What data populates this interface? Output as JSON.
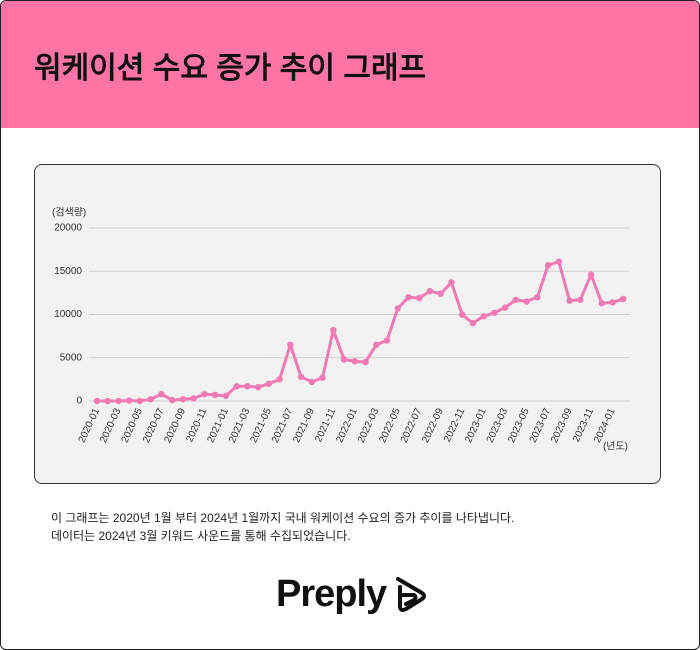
{
  "header": {
    "title": "워케이션 수요 증가 추이 그래프"
  },
  "chart_data": {
    "type": "line",
    "y_label": "(검색량)",
    "x_label": "(년도)",
    "categories": [
      "2020-01",
      null,
      "2020-03",
      null,
      "2020-05",
      null,
      "2020-07",
      null,
      "2020-09",
      null,
      "2020-11",
      null,
      "2021-01",
      null,
      "2021-03",
      null,
      "2021-05",
      null,
      "2021-07",
      null,
      "2021-09",
      null,
      "2021-11",
      null,
      "2022-01",
      null,
      "2022-03",
      null,
      "2022-05",
      null,
      "2022-07",
      null,
      "2022-09",
      null,
      "2022-11",
      null,
      "2023-01",
      null,
      "2023-03",
      null,
      "2023-05",
      null,
      "2023-07",
      null,
      "2023-09",
      null,
      "2023-11",
      null,
      "2024-01",
      null
    ],
    "values": [
      0,
      0,
      0,
      50,
      0,
      200,
      800,
      100,
      200,
      300,
      800,
      700,
      600,
      1700,
      1700,
      1600,
      2000,
      2500,
      6500,
      2800,
      2200,
      2700,
      8200,
      4800,
      4600,
      4500,
      6500,
      7000,
      10700,
      12000,
      11900,
      12700,
      12400,
      13700,
      10000,
      9000,
      9800,
      10200,
      10800,
      11700,
      11500,
      12000,
      15700,
      16100,
      11600,
      11700,
      14600,
      11300,
      11400,
      11800
    ],
    "color": "#f07ab2",
    "ylim": [
      0,
      20000
    ],
    "yticks": [
      0,
      5000,
      10000,
      15000,
      20000
    ],
    "grid": true
  },
  "description": [
    "이 그래프는 2020년 1월 부터 2024년 1월까지 국내 워케이션 수요의 증가 추이를 나타냅니다.",
    "데이터는 2024년 3월 키워드 사운드를 통해 수집되었습니다."
  ],
  "logo": "Preply"
}
